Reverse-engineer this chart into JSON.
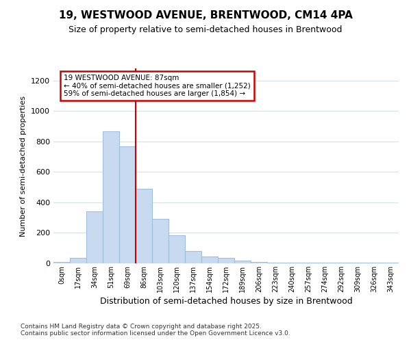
{
  "title_line1": "19, WESTWOOD AVENUE, BRENTWOOD, CM14 4PA",
  "title_line2": "Size of property relative to semi-detached houses in Brentwood",
  "xlabel": "Distribution of semi-detached houses by size in Brentwood",
  "ylabel": "Number of semi-detached properties",
  "categories": [
    "0sqm",
    "17sqm",
    "34sqm",
    "51sqm",
    "69sqm",
    "86sqm",
    "103sqm",
    "120sqm",
    "137sqm",
    "154sqm",
    "172sqm",
    "189sqm",
    "206sqm",
    "223sqm",
    "240sqm",
    "257sqm",
    "274sqm",
    "292sqm",
    "309sqm",
    "326sqm",
    "343sqm"
  ],
  "bar_heights": [
    8,
    35,
    343,
    865,
    770,
    490,
    290,
    185,
    80,
    47,
    35,
    20,
    10,
    5,
    5,
    5,
    5,
    5,
    5,
    5,
    5
  ],
  "bar_color": "#c8daf0",
  "bar_edge_color": "#a0bede",
  "grid_color": "#d5e0ef",
  "annotation_text": "19 WESTWOOD AVENUE: 87sqm\n← 40% of semi-detached houses are smaller (1,252)\n59% of semi-detached houses are larger (1,854) →",
  "annotation_box_color": "#ffffff",
  "annotation_border_color": "#cc0000",
  "vline_color": "#cc0000",
  "vline_x": 4.5,
  "ylim": [
    0,
    1280
  ],
  "yticks": [
    0,
    200,
    400,
    600,
    800,
    1000,
    1200
  ],
  "footer": "Contains HM Land Registry data © Crown copyright and database right 2025.\nContains public sector information licensed under the Open Government Licence v3.0.",
  "bg_color": "#ffffff",
  "plot_bg_color": "#ffffff"
}
